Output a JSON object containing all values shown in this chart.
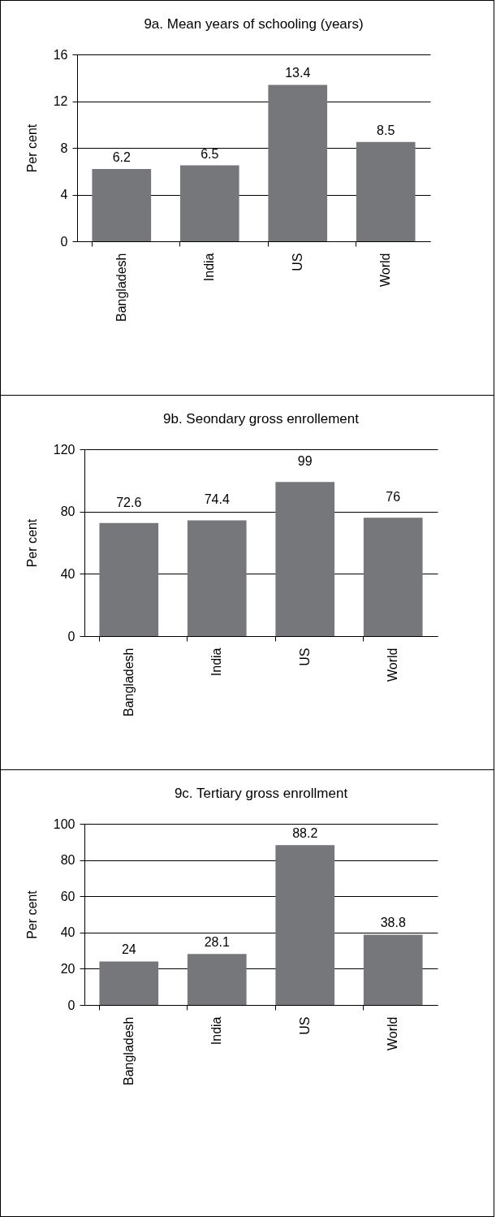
{
  "chart_data": [
    {
      "type": "bar",
      "title": "9a. Mean years of schooling (years)",
      "ylabel": "Per cent",
      "categories": [
        "Bangladesh",
        "India",
        "US",
        "World"
      ],
      "values": [
        6.2,
        6.5,
        13.4,
        8.5
      ],
      "color": "#76777b",
      "ylim": [
        0,
        16
      ],
      "yticks": [
        0,
        4,
        8,
        12,
        16
      ],
      "grid": "y",
      "data_labels": true
    },
    {
      "type": "bar",
      "title": "9b. Seondary gross enrollement",
      "ylabel": "Per cent",
      "categories": [
        "Bangladesh",
        "India",
        "US",
        "World"
      ],
      "values": [
        72.6,
        74.4,
        99,
        76
      ],
      "color": "#76777b",
      "ylim": [
        0,
        120
      ],
      "yticks": [
        0,
        40,
        80,
        120
      ],
      "grid": "y",
      "data_labels": true
    },
    {
      "type": "bar",
      "title": "9c. Tertiary gross enrollment",
      "ylabel": "Per cent",
      "categories": [
        "Bangladesh",
        "India",
        "US",
        "World"
      ],
      "values": [
        24,
        28.1,
        88.2,
        38.8
      ],
      "color": "#76777b",
      "ylim": [
        0,
        100
      ],
      "yticks": [
        0,
        20,
        40,
        60,
        80,
        100
      ],
      "grid": "y",
      "data_labels": true
    }
  ]
}
